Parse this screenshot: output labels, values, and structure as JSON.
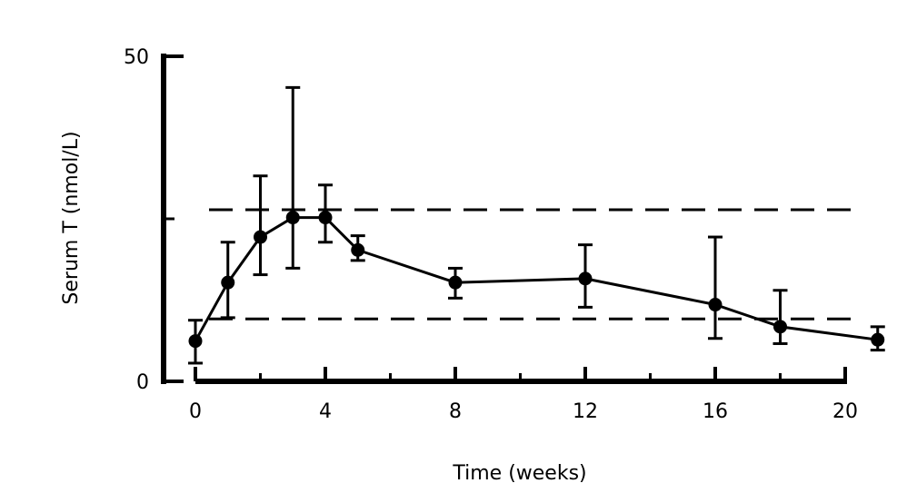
{
  "chart_data": {
    "type": "line",
    "title": "",
    "xlabel": "Time (weeks)",
    "ylabel": "Serum T (nmol/L)",
    "xlim": [
      0,
      20
    ],
    "ylim": [
      0,
      50
    ],
    "xticks": [
      0,
      4,
      8,
      12,
      16,
      20
    ],
    "yticks": [
      0,
      50
    ],
    "grid": false,
    "series": [
      {
        "x": [
          0,
          1,
          2,
          3,
          4,
          5,
          8,
          12,
          16,
          18,
          21
        ],
        "y": [
          6.2,
          15.2,
          22.2,
          25.2,
          25.2,
          20.2,
          15.2,
          15.8,
          11.8,
          8.4,
          6.4
        ],
        "err_low": [
          2.8,
          9.8,
          16.4,
          17.4,
          21.4,
          18.6,
          12.8,
          11.4,
          6.6,
          5.8,
          4.8
        ],
        "err_high": [
          9.4,
          21.4,
          31.6,
          45.2,
          30.2,
          22.4,
          17.4,
          21.0,
          22.2,
          14.0,
          8.4
        ]
      }
    ],
    "reference_lines": [
      {
        "y": 26.4,
        "style": "dashed"
      },
      {
        "y": 9.6,
        "style": "dashed"
      }
    ]
  }
}
